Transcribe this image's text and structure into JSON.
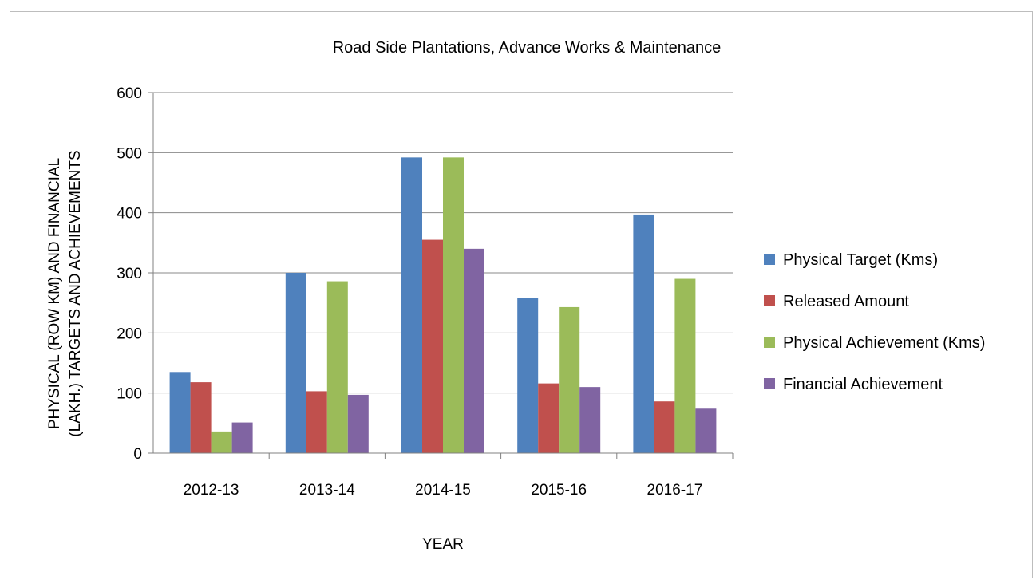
{
  "chart_data": {
    "type": "bar",
    "title": "Road Side Plantations,  Advance Works & Maintenance",
    "xlabel": "YEAR",
    "ylabel_lines": [
      "PHYSICAL (ROW KM) AND FINANCIAL",
      "(LAKH.) TARGETS AND ACHIEVEMENTS"
    ],
    "categories": [
      "2012-13",
      "2013-14",
      "2014-15",
      "2015-16",
      "2016-17"
    ],
    "ylim": [
      0,
      600
    ],
    "yticks": [
      0,
      100,
      200,
      300,
      400,
      500,
      600
    ],
    "grid": true,
    "legend_position": "right",
    "series": [
      {
        "name": "Physical Target (Kms)",
        "color": "#4f81bd",
        "values": [
          135,
          300,
          492,
          258,
          397
        ]
      },
      {
        "name": "Released Amount",
        "color": "#c0504d",
        "values": [
          118,
          103,
          355,
          116,
          86
        ]
      },
      {
        "name": "Physical Achievement (Kms)",
        "color": "#9bbb59",
        "values": [
          36,
          286,
          492,
          243,
          290
        ]
      },
      {
        "name": "Financial Achievement",
        "color": "#8064a2",
        "values": [
          51,
          97,
          340,
          110,
          74
        ]
      }
    ]
  }
}
